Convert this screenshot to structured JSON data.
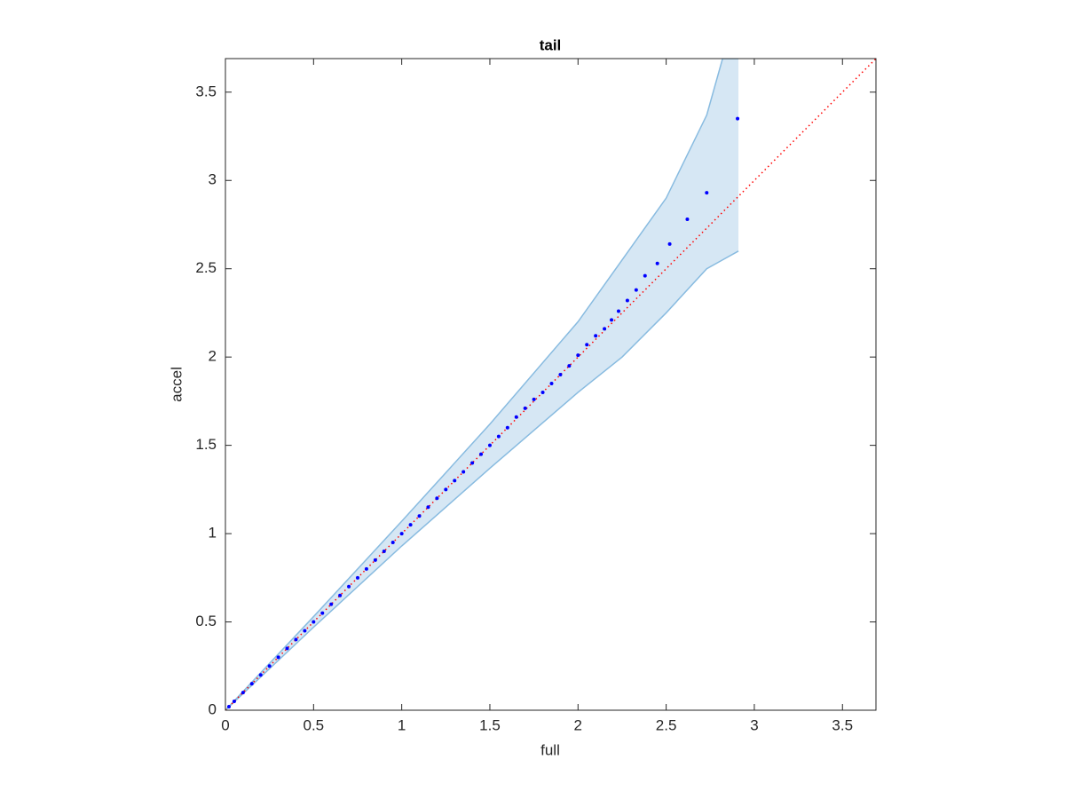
{
  "chart_data": {
    "type": "scatter",
    "title": "tail",
    "x_label": "full",
    "y_label": "accel",
    "xlim": [
      0,
      3.69
    ],
    "ylim": [
      0,
      3.69
    ],
    "xticks": [
      0,
      0.5,
      1,
      1.5,
      2,
      2.5,
      3,
      3.5
    ],
    "yticks": [
      0,
      0.5,
      1,
      1.5,
      2,
      2.5,
      3,
      3.5
    ],
    "box": true,
    "band": {
      "fill": "#d6e7f4",
      "edge_color": "#88bbe0",
      "x": [
        0,
        0.5,
        1,
        1.5,
        2,
        2.25,
        2.5,
        2.73,
        2.82,
        2.91
      ],
      "upper": [
        0,
        0.53,
        1.07,
        1.62,
        2.2,
        2.55,
        2.9,
        3.37,
        3.69,
        3.69
      ],
      "lower": [
        0,
        0.47,
        0.93,
        1.37,
        1.8,
        2.0,
        2.25,
        2.5,
        2.55,
        2.6
      ]
    },
    "reference_line": {
      "color": "#ff0000",
      "x": [
        0,
        3.69
      ],
      "values": [
        0,
        3.69
      ]
    },
    "series": [
      {
        "color": "#0000ff",
        "x": [
          0.02,
          0.05,
          0.1,
          0.15,
          0.2,
          0.25,
          0.3,
          0.35,
          0.4,
          0.45,
          0.5,
          0.55,
          0.6,
          0.65,
          0.7,
          0.75,
          0.8,
          0.85,
          0.9,
          0.95,
          1.0,
          1.05,
          1.1,
          1.15,
          1.2,
          1.25,
          1.3,
          1.35,
          1.4,
          1.45,
          1.5,
          1.55,
          1.6,
          1.65,
          1.7,
          1.75,
          1.8,
          1.85,
          1.9,
          1.95,
          2.0,
          2.05,
          2.1,
          2.15,
          2.19,
          2.23,
          2.28,
          2.33,
          2.38,
          2.45,
          2.52,
          2.62,
          2.73,
          2.905
        ],
        "values": [
          0.02,
          0.05,
          0.1,
          0.15,
          0.2,
          0.25,
          0.3,
          0.35,
          0.4,
          0.45,
          0.5,
          0.55,
          0.6,
          0.65,
          0.7,
          0.75,
          0.8,
          0.85,
          0.9,
          0.95,
          1.0,
          1.05,
          1.1,
          1.15,
          1.2,
          1.25,
          1.3,
          1.35,
          1.4,
          1.45,
          1.5,
          1.55,
          1.6,
          1.66,
          1.71,
          1.76,
          1.8,
          1.85,
          1.9,
          1.95,
          2.01,
          2.07,
          2.12,
          2.16,
          2.21,
          2.26,
          2.32,
          2.38,
          2.46,
          2.53,
          2.64,
          2.78,
          2.93,
          3.35
        ]
      }
    ]
  }
}
